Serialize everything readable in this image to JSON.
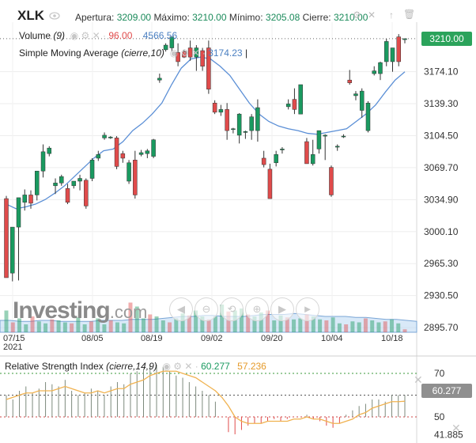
{
  "header": {
    "symbol": "XLK",
    "open_label": "Apertura:",
    "open_value": "3209.00",
    "high_label": "Máximo:",
    "high_value": "3210.00",
    "low_label": "Mínimo:",
    "low_value": "3205.08",
    "close_label": "Cierre:",
    "close_value": "3210.00",
    "icons": [
      "eye-icon",
      "settings-gear-icon",
      "close-icon",
      "up-arrow-icon",
      "delete-trash-icon"
    ]
  },
  "legend": {
    "volume_label": "Volume",
    "volume_param": "(9)",
    "volume_value": "96.00",
    "volume_ma_value": "4566.56",
    "sma_label": "Simple Moving Average",
    "sma_param": "(cierre,10)",
    "sma_value": "3174.23"
  },
  "price_tag": "3210.00",
  "rsi": {
    "label": "Relative Strength Index",
    "param": "(cierre,14,9)",
    "value": "60.277",
    "signal_value": "57.236",
    "tag": "60.277"
  },
  "logo": {
    "text": "Investing",
    "suffix": ".com"
  },
  "nav_icons": [
    "scroll-left-icon",
    "zoom-out-icon",
    "zoom-reset-icon",
    "zoom-in-icon",
    "scroll-right-icon",
    "play-icon"
  ],
  "colors": {
    "up": "#1a9a60",
    "down": "#e04b4b",
    "sma": "#5b8fd6",
    "rsi_signal": "#f0b250",
    "volume_area": "#b9d7f2",
    "price_tag_bg": "#2ba35b"
  },
  "chart_data": [
    {
      "type": "candlestick",
      "title": "XLK",
      "y_ticks": [
        "3174.10",
        "3139.30",
        "3104.50",
        "3069.70",
        "3034.90",
        "3000.10",
        "2965.30",
        "2930.50",
        "2895.70"
      ],
      "x_ticks": [
        "07/15\n2021",
        "08/05",
        "08/19",
        "09/02",
        "09/20",
        "10/04",
        "10/18"
      ],
      "ylim": [
        2882,
        3228
      ],
      "grid": true,
      "candles": [
        {
          "o": 3036,
          "h": 3039,
          "l": 2950,
          "c": 2950
        },
        {
          "o": 2955,
          "h": 3005,
          "l": 2946,
          "c": 3005
        },
        {
          "o": 3005,
          "h": 3037,
          "l": 2947,
          "c": 3037
        },
        {
          "o": 3032,
          "h": 3046,
          "l": 3023,
          "c": 3040
        },
        {
          "o": 3040,
          "h": 3045,
          "l": 3025,
          "c": 3031
        },
        {
          "o": 3040,
          "h": 3066,
          "l": 3034,
          "c": 3066
        },
        {
          "o": 3066,
          "h": 3095,
          "l": 3059,
          "c": 3087
        },
        {
          "o": 3085,
          "h": 3093,
          "l": 3082,
          "c": 3091
        },
        {
          "o": 3050,
          "h": 3058,
          "l": 3041,
          "c": 3053
        },
        {
          "o": 3053,
          "h": 3062,
          "l": 3050,
          "c": 3060
        },
        {
          "o": 3047,
          "h": 3052,
          "l": 3030,
          "c": 3032
        },
        {
          "o": 3050,
          "h": 3055,
          "l": 3047,
          "c": 3055
        },
        {
          "o": 3055,
          "h": 3062,
          "l": 3045,
          "c": 3058
        },
        {
          "o": 3056,
          "h": 3058,
          "l": 3025,
          "c": 3028
        },
        {
          "o": 3058,
          "h": 3080,
          "l": 3055,
          "c": 3078
        },
        {
          "o": 3080,
          "h": 3088,
          "l": 3077,
          "c": 3084
        },
        {
          "o": 3102,
          "h": 3108,
          "l": 3100,
          "c": 3105
        },
        {
          "o": 3102,
          "h": 3104,
          "l": 3101,
          "c": 3103
        },
        {
          "o": 3102,
          "h": 3104,
          "l": 3068,
          "c": 3071
        },
        {
          "o": 3085,
          "h": 3088,
          "l": 3075,
          "c": 3080
        },
        {
          "o": 3055,
          "h": 3078,
          "l": 3052,
          "c": 3075
        },
        {
          "o": 3078,
          "h": 3088,
          "l": 3036,
          "c": 3040
        },
        {
          "o": 3084,
          "h": 3089,
          "l": 3082,
          "c": 3086
        },
        {
          "o": 3085,
          "h": 3090,
          "l": 3080,
          "c": 3088
        },
        {
          "o": 3082,
          "h": 3101,
          "l": 3080,
          "c": 3100
        },
        {
          "o": 3165,
          "h": 3172,
          "l": 3162,
          "c": 3167
        },
        {
          "o": 3198,
          "h": 3205,
          "l": 3196,
          "c": 3203
        },
        {
          "o": 3200,
          "h": 3212,
          "l": 3196,
          "c": 3212
        },
        {
          "o": 3195,
          "h": 3205,
          "l": 3180,
          "c": 3185
        },
        {
          "o": 3196,
          "h": 3198,
          "l": 3189,
          "c": 3190
        },
        {
          "o": 3200,
          "h": 3208,
          "l": 3186,
          "c": 3190
        },
        {
          "o": 3190,
          "h": 3203,
          "l": 3175,
          "c": 3200
        },
        {
          "o": 3197,
          "h": 3200,
          "l": 3175,
          "c": 3180
        },
        {
          "o": 3200,
          "h": 3208,
          "l": 3150,
          "c": 3155
        },
        {
          "o": 3140,
          "h": 3143,
          "l": 3128,
          "c": 3130
        },
        {
          "o": 3130,
          "h": 3138,
          "l": 3126,
          "c": 3133
        },
        {
          "o": 3133,
          "h": 3140,
          "l": 3100,
          "c": 3110
        },
        {
          "o": 3112,
          "h": 3113,
          "l": 3107,
          "c": 3112
        },
        {
          "o": 3105,
          "h": 3129,
          "l": 3096,
          "c": 3128
        },
        {
          "o": 3108,
          "h": 3110,
          "l": 3101,
          "c": 3109
        },
        {
          "o": 3110,
          "h": 3128,
          "l": 3100,
          "c": 3125
        },
        {
          "o": 3110,
          "h": 3144,
          "l": 3098,
          "c": 3135
        },
        {
          "o": 3080,
          "h": 3088,
          "l": 3070,
          "c": 3073
        },
        {
          "o": 3068,
          "h": 3074,
          "l": 3036,
          "c": 3036
        },
        {
          "o": 3075,
          "h": 3088,
          "l": 3071,
          "c": 3084
        },
        {
          "o": 3089,
          "h": 3092,
          "l": 3085,
          "c": 3090
        },
        {
          "o": 3136,
          "h": 3144,
          "l": 3133,
          "c": 3139
        },
        {
          "o": 3144,
          "h": 3156,
          "l": 3128,
          "c": 3133
        },
        {
          "o": 3128,
          "h": 3160,
          "l": 3128,
          "c": 3160
        },
        {
          "o": 3098,
          "h": 3102,
          "l": 3074,
          "c": 3074
        },
        {
          "o": 3074,
          "h": 3100,
          "l": 3072,
          "c": 3084
        },
        {
          "o": 3090,
          "h": 3110,
          "l": 3085,
          "c": 3110
        },
        {
          "o": 3104,
          "h": 3106,
          "l": 3078,
          "c": 3105
        },
        {
          "o": 3070,
          "h": 3072,
          "l": 3038,
          "c": 3040
        },
        {
          "o": 3092,
          "h": 3095,
          "l": 3088,
          "c": 3093
        },
        {
          "o": 3104,
          "h": 3106,
          "l": 3102,
          "c": 3104
        },
        {
          "o": 3165,
          "h": 3176,
          "l": 3160,
          "c": 3162
        },
        {
          "o": 3148,
          "h": 3153,
          "l": 3143,
          "c": 3150
        },
        {
          "o": 3132,
          "h": 3156,
          "l": 3124,
          "c": 3153
        },
        {
          "o": 3110,
          "h": 3142,
          "l": 3108,
          "c": 3140
        },
        {
          "o": 3172,
          "h": 3180,
          "l": 3170,
          "c": 3175
        },
        {
          "o": 3172,
          "h": 3185,
          "l": 3165,
          "c": 3184
        },
        {
          "o": 3185,
          "h": 3210,
          "l": 3180,
          "c": 3207
        },
        {
          "o": 3185,
          "h": 3200,
          "l": 3174,
          "c": 3200
        },
        {
          "o": 3212,
          "h": 3215,
          "l": 3180,
          "c": 3185
        },
        {
          "o": 3209,
          "h": 3210,
          "l": 3205,
          "c": 3210
        }
      ],
      "sma_series": {
        "name": "Simple Moving Average",
        "values": [
          3030,
          3025,
          3027,
          3030,
          3035,
          3042,
          3050,
          3060,
          3070,
          3080,
          3088,
          3090,
          3098,
          3110,
          3118,
          3128,
          3140,
          3160,
          3178,
          3188,
          3190,
          3188,
          3180,
          3170,
          3155,
          3140,
          3128,
          3120,
          3115,
          3112,
          3110,
          3107,
          3106,
          3108,
          3110,
          3112,
          3120,
          3128,
          3138,
          3152,
          3165,
          3174
        ]
      },
      "volume_bars": [
        22,
        10,
        14,
        8,
        16,
        11,
        9,
        13,
        12,
        10,
        9,
        15,
        8,
        11,
        14,
        8,
        12,
        10,
        9,
        30,
        26,
        14,
        18,
        16,
        12,
        10,
        14,
        19,
        17,
        22,
        16,
        13,
        16,
        28,
        21,
        22,
        24,
        18,
        16,
        20,
        22,
        12,
        17,
        15,
        13,
        14,
        18,
        16,
        13,
        12,
        15,
        9,
        8,
        11,
        10,
        14,
        12,
        10,
        11,
        13,
        9,
        3
      ],
      "volume_ma": [
        12,
        12,
        11,
        11,
        12,
        12,
        11,
        11,
        11,
        11,
        12,
        12,
        12,
        13,
        13,
        13,
        14,
        15,
        16,
        16,
        17,
        17,
        16,
        16,
        16,
        17,
        18,
        18,
        18,
        19,
        18,
        17,
        16,
        16,
        16,
        15,
        15,
        14,
        13,
        13,
        12,
        11
      ]
    },
    {
      "type": "line",
      "title": "Relative Strength Index",
      "y_ticks": [
        "70",
        "50",
        "41.885"
      ],
      "ylim": [
        38,
        78
      ],
      "series": [
        {
          "name": "Relative Strength Index",
          "values": [
            60,
            58,
            62,
            64,
            61,
            63,
            66,
            65,
            64,
            67,
            62,
            60,
            61,
            63,
            62,
            60,
            64,
            66,
            65,
            70,
            71,
            72,
            74,
            74,
            73,
            71,
            69,
            68,
            66,
            64,
            62,
            60,
            57,
            50,
            43,
            42,
            44,
            46,
            47,
            47,
            48,
            49,
            48,
            49,
            50,
            50,
            51,
            49,
            48,
            46,
            45,
            47,
            51,
            53,
            55,
            56,
            58,
            58,
            57,
            60,
            60,
            60
          ]
        },
        {
          "name": "Signal",
          "values": [
            58,
            59,
            60,
            61,
            61,
            62,
            62,
            62,
            63,
            64,
            63,
            62,
            61,
            61,
            62,
            61,
            62,
            63,
            63,
            65,
            66,
            67,
            69,
            70,
            71,
            71,
            71,
            70,
            69,
            68,
            66,
            64,
            62,
            59,
            55,
            50,
            48,
            47,
            47,
            47,
            48,
            48,
            48,
            48,
            49,
            49,
            50,
            49,
            49,
            48,
            47,
            47,
            48,
            49,
            51,
            52,
            54,
            55,
            56,
            57,
            57,
            57.2
          ]
        }
      ]
    }
  ]
}
